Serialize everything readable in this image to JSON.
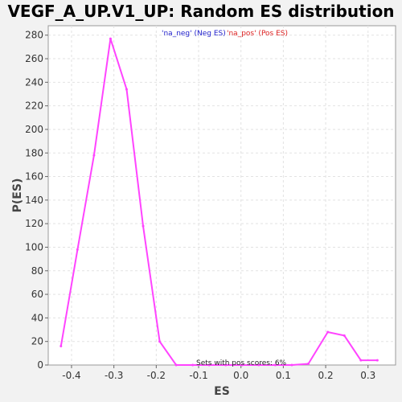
{
  "chart_data": {
    "type": "line",
    "title": "VEGF_A_UP.V1_UP: Random ES distribution",
    "xlabel": "ES",
    "ylabel": "P(ES)",
    "xlim": [
      -0.455,
      0.365
    ],
    "ylim": [
      0,
      288
    ],
    "x_ticks": [
      -0.4,
      -0.3,
      -0.2,
      -0.1,
      0.0,
      0.1,
      0.2,
      0.3
    ],
    "x_tick_labels": [
      "-0.4",
      "-0.3",
      "-0.2",
      "-0.1",
      "0.0",
      "0.1",
      "0.2",
      "0.3"
    ],
    "y_ticks": [
      0,
      20,
      40,
      60,
      80,
      100,
      120,
      140,
      160,
      180,
      200,
      220,
      240,
      260,
      280
    ],
    "y_tick_labels": [
      "0",
      "20",
      "40",
      "60",
      "80",
      "100",
      "120",
      "140",
      "160",
      "180",
      "200",
      "220",
      "240",
      "260",
      "280"
    ],
    "grid": true,
    "legend_position": "top-center",
    "legend": [
      {
        "label": "'na_neg' (Neg ES)",
        "color": "#2222cc"
      },
      {
        "label": "'na_pos' (Pos ES)",
        "color": "#dd2222"
      }
    ],
    "annotation": "Sets with pos scores: 6%",
    "series": [
      {
        "color": "#ff44ff",
        "x": [
          -0.425,
          -0.386,
          -0.347,
          -0.308,
          -0.27,
          -0.231,
          -0.192,
          -0.153,
          -0.114,
          -0.075,
          -0.036,
          0.003,
          0.042,
          0.081,
          0.12,
          0.159,
          0.205,
          0.244,
          0.283,
          0.322
        ],
        "y": [
          16,
          98,
          178,
          277,
          234,
          118,
          20,
          0,
          0,
          0,
          0,
          0,
          0,
          0,
          0,
          1,
          28,
          25,
          4,
          4
        ]
      }
    ]
  }
}
